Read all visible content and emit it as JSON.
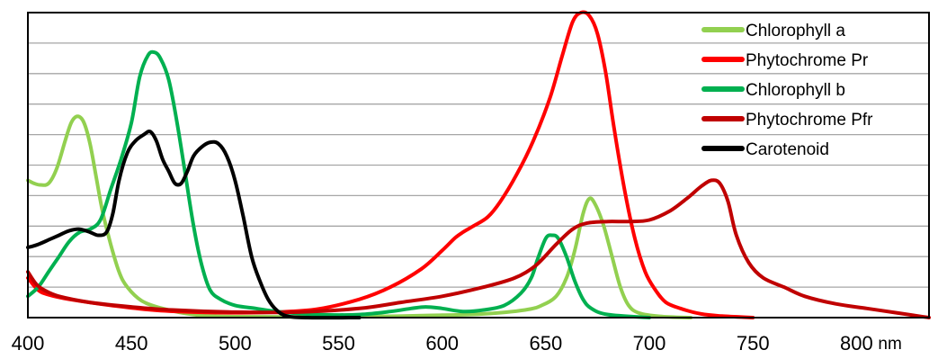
{
  "chart_data": {
    "type": "line",
    "title": "",
    "xlabel": "",
    "ylabel": "",
    "x_unit": "nm",
    "xlim": [
      400,
      835
    ],
    "ylim": [
      0,
      1
    ],
    "x_ticks": [
      "400",
      "450",
      "500",
      "550",
      "600",
      "650",
      "700",
      "750",
      "800"
    ],
    "y_gridlines": 10,
    "grid": true,
    "legend_position": "top-right",
    "series": [
      {
        "name": "Chlorophyll a",
        "color": "#92d050",
        "points": [
          [
            400,
            0.45
          ],
          [
            403,
            0.44
          ],
          [
            406,
            0.435
          ],
          [
            410,
            0.44
          ],
          [
            414,
            0.49
          ],
          [
            418,
            0.58
          ],
          [
            421,
            0.64
          ],
          [
            424,
            0.66
          ],
          [
            427,
            0.64
          ],
          [
            430,
            0.57
          ],
          [
            433,
            0.46
          ],
          [
            436,
            0.35
          ],
          [
            440,
            0.24
          ],
          [
            444,
            0.15
          ],
          [
            448,
            0.1
          ],
          [
            455,
            0.055
          ],
          [
            465,
            0.03
          ],
          [
            480,
            0.01
          ],
          [
            500,
            0.003
          ],
          [
            560,
            0.003
          ],
          [
            600,
            0.008
          ],
          [
            620,
            0.012
          ],
          [
            640,
            0.025
          ],
          [
            648,
            0.04
          ],
          [
            655,
            0.07
          ],
          [
            660,
            0.13
          ],
          [
            664,
            0.22
          ],
          [
            668,
            0.34
          ],
          [
            671,
            0.39
          ],
          [
            674,
            0.37
          ],
          [
            678,
            0.3
          ],
          [
            682,
            0.2
          ],
          [
            686,
            0.1
          ],
          [
            690,
            0.04
          ],
          [
            695,
            0.015
          ],
          [
            705,
            0.004
          ],
          [
            720,
            0
          ]
        ]
      },
      {
        "name": "Phytochrome Pr",
        "color": "#ff0000",
        "points": [
          [
            400,
            0.13
          ],
          [
            405,
            0.09
          ],
          [
            410,
            0.075
          ],
          [
            420,
            0.06
          ],
          [
            440,
            0.04
          ],
          [
            460,
            0.025
          ],
          [
            480,
            0.018
          ],
          [
            500,
            0.016
          ],
          [
            520,
            0.018
          ],
          [
            540,
            0.028
          ],
          [
            560,
            0.06
          ],
          [
            575,
            0.1
          ],
          [
            590,
            0.16
          ],
          [
            600,
            0.22
          ],
          [
            606,
            0.26
          ],
          [
            610,
            0.28
          ],
          [
            615,
            0.3
          ],
          [
            622,
            0.33
          ],
          [
            628,
            0.38
          ],
          [
            636,
            0.47
          ],
          [
            644,
            0.58
          ],
          [
            652,
            0.72
          ],
          [
            658,
            0.86
          ],
          [
            663,
            0.97
          ],
          [
            667,
            1.0
          ],
          [
            671,
            0.99
          ],
          [
            675,
            0.93
          ],
          [
            679,
            0.8
          ],
          [
            683,
            0.62
          ],
          [
            688,
            0.42
          ],
          [
            693,
            0.26
          ],
          [
            698,
            0.15
          ],
          [
            703,
            0.09
          ],
          [
            708,
            0.05
          ],
          [
            715,
            0.03
          ],
          [
            725,
            0.012
          ],
          [
            735,
            0.005
          ],
          [
            750,
            0
          ]
        ]
      },
      {
        "name": "Chlorophyll b",
        "color": "#00b050",
        "points": [
          [
            400,
            0.07
          ],
          [
            405,
            0.1
          ],
          [
            410,
            0.15
          ],
          [
            415,
            0.2
          ],
          [
            420,
            0.25
          ],
          [
            425,
            0.28
          ],
          [
            430,
            0.29
          ],
          [
            435,
            0.32
          ],
          [
            440,
            0.42
          ],
          [
            445,
            0.52
          ],
          [
            450,
            0.64
          ],
          [
            454,
            0.79
          ],
          [
            458,
            0.86
          ],
          [
            461,
            0.87
          ],
          [
            464,
            0.85
          ],
          [
            468,
            0.78
          ],
          [
            472,
            0.64
          ],
          [
            476,
            0.47
          ],
          [
            480,
            0.3
          ],
          [
            484,
            0.17
          ],
          [
            488,
            0.09
          ],
          [
            493,
            0.06
          ],
          [
            500,
            0.04
          ],
          [
            510,
            0.03
          ],
          [
            520,
            0.02
          ],
          [
            540,
            0.01
          ],
          [
            560,
            0.01
          ],
          [
            575,
            0.02
          ],
          [
            585,
            0.03
          ],
          [
            592,
            0.035
          ],
          [
            600,
            0.03
          ],
          [
            610,
            0.02
          ],
          [
            620,
            0.025
          ],
          [
            630,
            0.04
          ],
          [
            638,
            0.08
          ],
          [
            643,
            0.13
          ],
          [
            646,
            0.19
          ],
          [
            650,
            0.26
          ],
          [
            653,
            0.27
          ],
          [
            656,
            0.26
          ],
          [
            660,
            0.2
          ],
          [
            664,
            0.12
          ],
          [
            668,
            0.06
          ],
          [
            672,
            0.03
          ],
          [
            680,
            0.01
          ],
          [
            700,
            0
          ]
        ]
      },
      {
        "name": "Phytochrome Pfr",
        "color": "#c00000",
        "points": [
          [
            400,
            0.15
          ],
          [
            404,
            0.11
          ],
          [
            408,
            0.09
          ],
          [
            415,
            0.07
          ],
          [
            430,
            0.05
          ],
          [
            450,
            0.035
          ],
          [
            470,
            0.025
          ],
          [
            500,
            0.018
          ],
          [
            530,
            0.018
          ],
          [
            560,
            0.03
          ],
          [
            580,
            0.05
          ],
          [
            600,
            0.07
          ],
          [
            620,
            0.1
          ],
          [
            635,
            0.13
          ],
          [
            645,
            0.17
          ],
          [
            655,
            0.24
          ],
          [
            663,
            0.29
          ],
          [
            670,
            0.31
          ],
          [
            680,
            0.315
          ],
          [
            690,
            0.315
          ],
          [
            700,
            0.32
          ],
          [
            710,
            0.35
          ],
          [
            718,
            0.39
          ],
          [
            725,
            0.43
          ],
          [
            730,
            0.45
          ],
          [
            734,
            0.44
          ],
          [
            738,
            0.38
          ],
          [
            742,
            0.27
          ],
          [
            748,
            0.18
          ],
          [
            755,
            0.13
          ],
          [
            765,
            0.1
          ],
          [
            775,
            0.07
          ],
          [
            790,
            0.045
          ],
          [
            805,
            0.03
          ],
          [
            820,
            0.015
          ],
          [
            830,
            0.005
          ],
          [
            835,
            0
          ]
        ]
      },
      {
        "name": "Carotenoid",
        "color": "#000000",
        "points": [
          [
            400,
            0.23
          ],
          [
            405,
            0.24
          ],
          [
            410,
            0.255
          ],
          [
            415,
            0.27
          ],
          [
            420,
            0.285
          ],
          [
            425,
            0.29
          ],
          [
            430,
            0.28
          ],
          [
            434,
            0.27
          ],
          [
            438,
            0.28
          ],
          [
            441,
            0.34
          ],
          [
            444,
            0.45
          ],
          [
            448,
            0.54
          ],
          [
            452,
            0.58
          ],
          [
            456,
            0.6
          ],
          [
            459,
            0.61
          ],
          [
            462,
            0.58
          ],
          [
            465,
            0.52
          ],
          [
            468,
            0.48
          ],
          [
            471,
            0.44
          ],
          [
            474,
            0.44
          ],
          [
            477,
            0.48
          ],
          [
            480,
            0.53
          ],
          [
            484,
            0.56
          ],
          [
            488,
            0.575
          ],
          [
            492,
            0.57
          ],
          [
            496,
            0.53
          ],
          [
            500,
            0.45
          ],
          [
            504,
            0.33
          ],
          [
            508,
            0.2
          ],
          [
            512,
            0.12
          ],
          [
            516,
            0.06
          ],
          [
            520,
            0.025
          ],
          [
            525,
            0.005
          ],
          [
            535,
            0
          ],
          [
            560,
            0
          ]
        ]
      }
    ]
  }
}
